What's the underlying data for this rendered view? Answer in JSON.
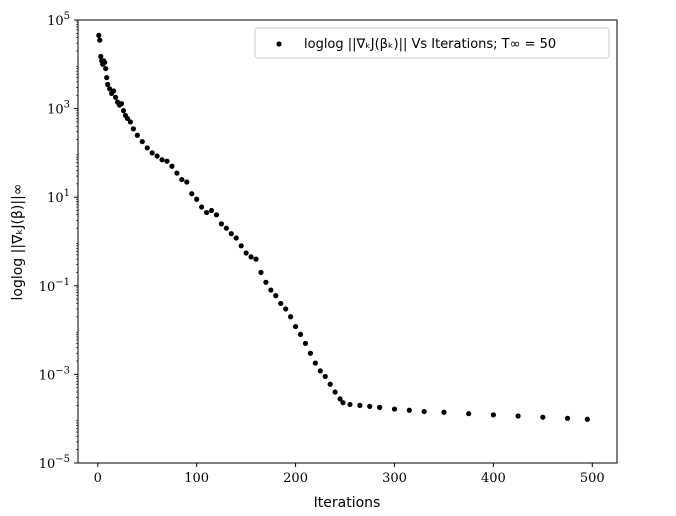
{
  "chart_data": {
    "type": "scatter",
    "title": "",
    "xlabel": "Iterations",
    "ylabel": "loglog ||∇ₖJ(β)||∞",
    "yscale": "log",
    "xlim": [
      -20,
      525
    ],
    "ylim": [
      1e-05,
      100000
    ],
    "xticks": [
      0,
      100,
      200,
      300,
      400,
      500
    ],
    "xtick_labels": [
      "0",
      "100",
      "200",
      "300",
      "400",
      "500"
    ],
    "yticks": [
      1e-05,
      0.001,
      0.1,
      10,
      1000,
      100000
    ],
    "ytick_labels": [
      {
        "base": "10",
        "exp": "−5"
      },
      {
        "base": "10",
        "exp": "−3"
      },
      {
        "base": "10",
        "exp": "−1"
      },
      {
        "base": "10",
        "exp": "1"
      },
      {
        "base": "10",
        "exp": "3"
      },
      {
        "base": "10",
        "exp": "5"
      }
    ],
    "grid": false,
    "legend_position": "top-right",
    "marker_color": "#000000",
    "series": [
      {
        "name": "loglog ||∇ₖJ(βₖ)|| Vs Iterations; T∞ = 50",
        "x": [
          1,
          2,
          3,
          4,
          5,
          6,
          7,
          8,
          9,
          10,
          12,
          14,
          16,
          18,
          20,
          22,
          24,
          26,
          28,
          30,
          33,
          36,
          40,
          45,
          50,
          55,
          60,
          65,
          70,
          75,
          80,
          85,
          90,
          95,
          100,
          105,
          110,
          115,
          120,
          125,
          130,
          135,
          140,
          145,
          150,
          155,
          160,
          165,
          170,
          175,
          180,
          185,
          190,
          195,
          200,
          205,
          210,
          215,
          220,
          225,
          230,
          235,
          240,
          245,
          248,
          255,
          265,
          275,
          285,
          300,
          315,
          330,
          350,
          375,
          400,
          425,
          450,
          475,
          495
        ],
        "y": [
          45000,
          35000,
          15000,
          12000,
          10000,
          12000,
          11000,
          8000,
          5000,
          3500,
          2800,
          2200,
          2500,
          1800,
          1400,
          1200,
          1300,
          900,
          700,
          600,
          500,
          350,
          250,
          180,
          130,
          100,
          85,
          70,
          65,
          50,
          35,
          25,
          22,
          12,
          9,
          6,
          4.5,
          5,
          4,
          2.5,
          2,
          1.5,
          1.2,
          0.8,
          0.55,
          0.45,
          0.4,
          0.2,
          0.12,
          0.08,
          0.06,
          0.04,
          0.03,
          0.02,
          0.012,
          0.008,
          0.005,
          0.003,
          0.0018,
          0.0012,
          0.0009,
          0.0006,
          0.0004,
          0.00028,
          0.00023,
          0.00021,
          0.0002,
          0.00019,
          0.00018,
          0.000165,
          0.000155,
          0.000145,
          0.00014,
          0.00013,
          0.000122,
          0.000115,
          0.000108,
          0.000102,
          9.7e-05
        ]
      }
    ]
  }
}
